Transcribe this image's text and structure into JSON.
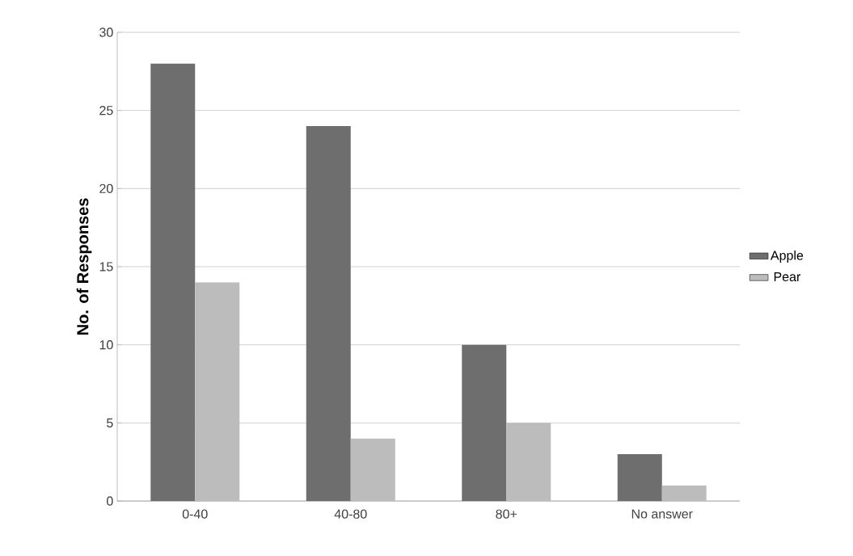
{
  "chart_data": {
    "type": "bar",
    "ylabel": "No. of Responses",
    "categories": [
      "0-40",
      "40-80",
      "80+",
      "No answer"
    ],
    "series": [
      {
        "name": "Apple",
        "color": "#6e6e6e",
        "values": [
          28,
          24,
          10,
          3
        ]
      },
      {
        "name": "Pear",
        "color": "#bcbcbc",
        "values": [
          14,
          4,
          5,
          1
        ]
      }
    ],
    "ylim": [
      0,
      30
    ],
    "yticks": [
      0,
      5,
      10,
      15,
      20,
      25,
      30
    ],
    "grid": "y",
    "legend": "right"
  }
}
